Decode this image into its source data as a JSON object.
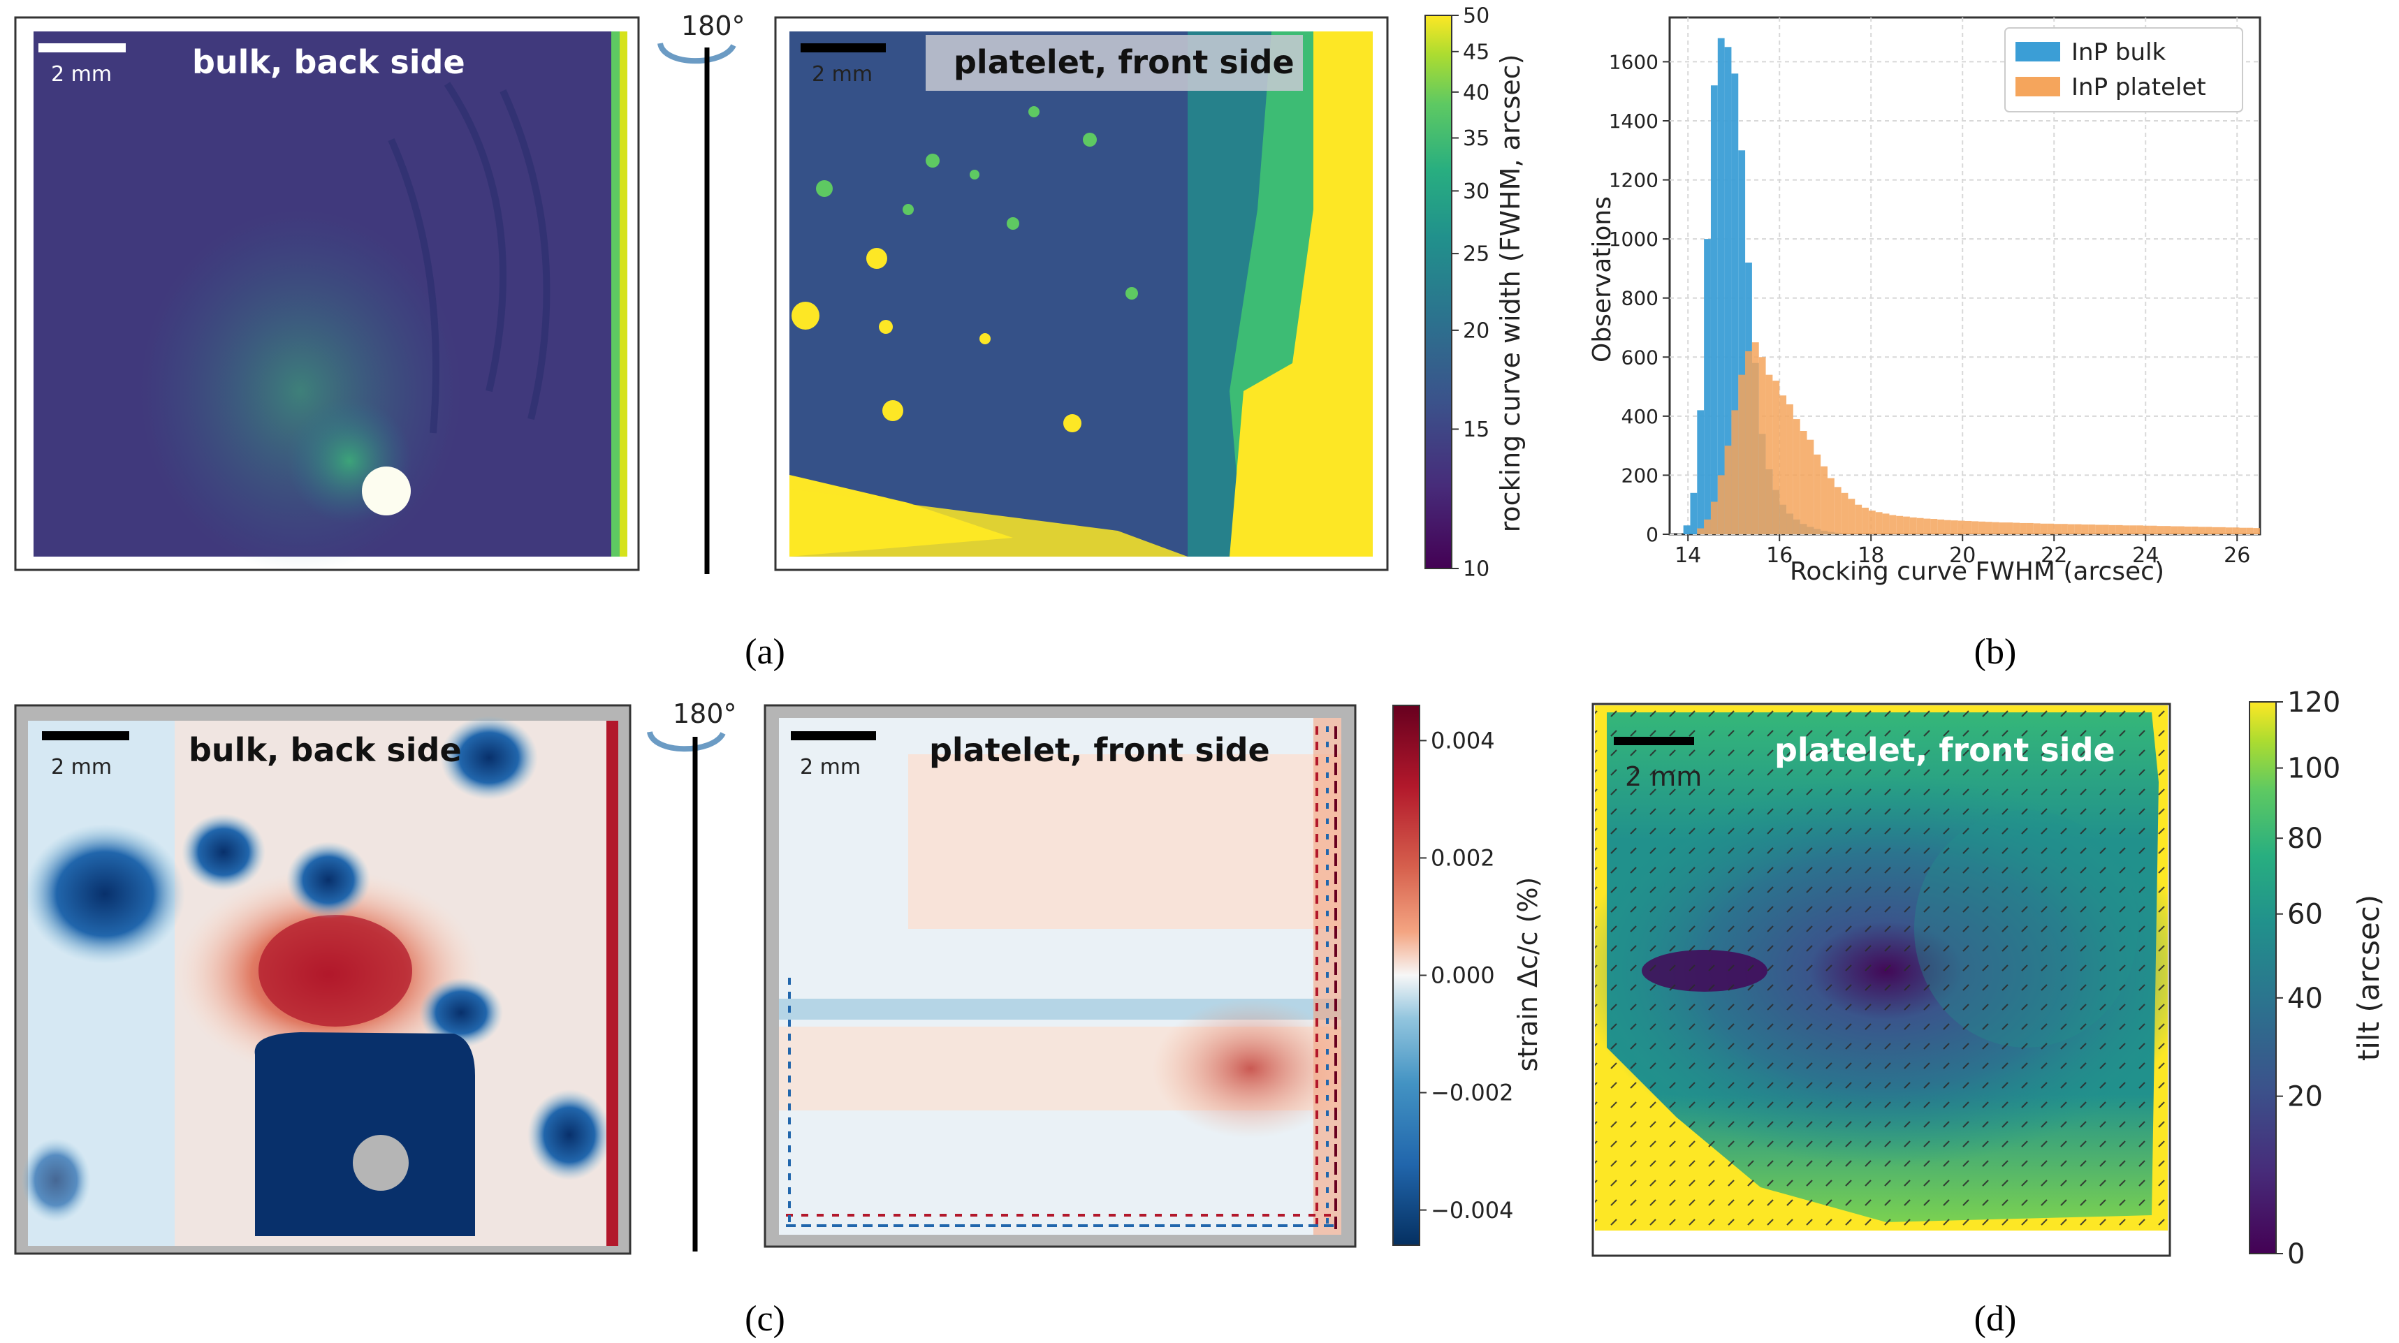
{
  "captions": {
    "a": "(a)",
    "b": "(b)",
    "c": "(c)",
    "d": "(d)"
  },
  "rotation_label": "180°",
  "scale_bar_text": "2 mm",
  "panel_a": {
    "left_title": "bulk, back side",
    "right_title": "platelet, front side",
    "colorbar": {
      "label": "rocking curve width (FWHM, arcsec)",
      "ticks": [
        "10",
        "15",
        "20",
        "25",
        "30",
        "35",
        "40",
        "45",
        "50"
      ],
      "tick_values": [
        10,
        15,
        20,
        25,
        30,
        35,
        40,
        45,
        50
      ]
    }
  },
  "panel_c": {
    "left_title": "bulk, back side",
    "right_title": "platelet, front side",
    "colorbar": {
      "label": "strain Δc/c (%)",
      "ticks": [
        "0.004",
        "0.002",
        "0.000",
        "−0.002",
        "−0.004"
      ],
      "tick_values": [
        0.004,
        0.002,
        0.0,
        -0.002,
        -0.004
      ]
    }
  },
  "panel_d": {
    "title": "platelet, front side",
    "colorbar": {
      "label": "tilt (arcsec)",
      "ticks": [
        "120",
        "100",
        "80",
        "60",
        "40",
        "20",
        "0"
      ],
      "tick_values": [
        120,
        100,
        80,
        60,
        40,
        20,
        0
      ]
    }
  },
  "colors": {
    "viridis_low": "#440154",
    "viridis_mid": "#21918c",
    "viridis_high": "#fde725",
    "rdbu_neg": "#053061",
    "rdbu_zero": "#f7f7f7",
    "rdbu_pos": "#67001f",
    "hist_bulk": "#3b9ed6",
    "hist_platelet": "#f5a55c"
  },
  "chart_data": [
    {
      "type": "bar",
      "panel": "b",
      "title": "",
      "xlabel": "Rocking curve FWHM (arcsec)",
      "ylabel": "Observations",
      "xlim": [
        13.6,
        26.5
      ],
      "ylim": [
        0,
        1750
      ],
      "xticks": [
        14,
        16,
        18,
        20,
        22,
        24,
        26
      ],
      "yticks": [
        0,
        200,
        400,
        600,
        800,
        1000,
        1200,
        1400,
        1600
      ],
      "grid": true,
      "legend": "top-right",
      "bin_width": 0.15,
      "series": [
        {
          "name": "InP bulk",
          "color": "#3b9ed6",
          "bins": [
            [
              13.9,
              30
            ],
            [
              14.05,
              140
            ],
            [
              14.2,
              420
            ],
            [
              14.35,
              1000
            ],
            [
              14.5,
              1520
            ],
            [
              14.65,
              1680
            ],
            [
              14.8,
              1650
            ],
            [
              14.95,
              1560
            ],
            [
              15.1,
              1300
            ],
            [
              15.25,
              920
            ],
            [
              15.4,
              580
            ],
            [
              15.55,
              340
            ],
            [
              15.7,
              220
            ],
            [
              15.85,
              150
            ],
            [
              16.0,
              100
            ],
            [
              16.15,
              70
            ],
            [
              16.3,
              50
            ],
            [
              16.45,
              35
            ],
            [
              16.6,
              25
            ],
            [
              16.75,
              18
            ],
            [
              16.9,
              12
            ],
            [
              17.05,
              8
            ],
            [
              17.2,
              5
            ]
          ]
        },
        {
          "name": "InP platelet",
          "color": "#f5a55c",
          "bins": [
            [
              14.2,
              20
            ],
            [
              14.35,
              50
            ],
            [
              14.5,
              110
            ],
            [
              14.65,
              200
            ],
            [
              14.8,
              300
            ],
            [
              14.95,
              420
            ],
            [
              15.1,
              540
            ],
            [
              15.25,
              620
            ],
            [
              15.4,
              650
            ],
            [
              15.55,
              600
            ],
            [
              15.7,
              540
            ],
            [
              15.85,
              520
            ],
            [
              16.0,
              470
            ],
            [
              16.15,
              440
            ],
            [
              16.3,
              390
            ],
            [
              16.45,
              350
            ],
            [
              16.6,
              320
            ],
            [
              16.75,
              270
            ],
            [
              16.9,
              230
            ],
            [
              17.05,
              190
            ],
            [
              17.2,
              160
            ],
            [
              17.35,
              140
            ],
            [
              17.5,
              120
            ],
            [
              17.65,
              100
            ],
            [
              17.8,
              90
            ],
            [
              17.95,
              80
            ],
            [
              18.1,
              75
            ],
            [
              18.25,
              70
            ],
            [
              18.4,
              65
            ],
            [
              18.55,
              62
            ],
            [
              18.7,
              60
            ],
            [
              18.85,
              57
            ],
            [
              19.0,
              55
            ],
            [
              19.15,
              53
            ],
            [
              19.3,
              52
            ],
            [
              19.45,
              50
            ],
            [
              19.6,
              48
            ],
            [
              19.75,
              47
            ],
            [
              19.9,
              46
            ],
            [
              20.05,
              45
            ],
            [
              20.2,
              44
            ],
            [
              20.35,
              43
            ],
            [
              20.5,
              42
            ],
            [
              20.65,
              41
            ],
            [
              20.8,
              40
            ],
            [
              20.95,
              40
            ],
            [
              21.1,
              39
            ],
            [
              21.25,
              38
            ],
            [
              21.4,
              38
            ],
            [
              21.55,
              37
            ],
            [
              21.7,
              36
            ],
            [
              21.85,
              36
            ],
            [
              22.0,
              35
            ],
            [
              22.15,
              35
            ],
            [
              22.3,
              34
            ],
            [
              22.45,
              34
            ],
            [
              22.6,
              33
            ],
            [
              22.75,
              33
            ],
            [
              22.9,
              32
            ],
            [
              23.05,
              32
            ],
            [
              23.2,
              31
            ],
            [
              23.35,
              31
            ],
            [
              23.5,
              30
            ],
            [
              23.65,
              30
            ],
            [
              23.8,
              30
            ],
            [
              23.95,
              29
            ],
            [
              24.1,
              29
            ],
            [
              24.25,
              28
            ],
            [
              24.4,
              28
            ],
            [
              24.55,
              27
            ],
            [
              24.7,
              27
            ],
            [
              24.85,
              26
            ],
            [
              25.0,
              26
            ],
            [
              25.15,
              25
            ],
            [
              25.3,
              25
            ],
            [
              25.45,
              24
            ],
            [
              25.6,
              24
            ],
            [
              25.75,
              23
            ],
            [
              25.9,
              23
            ],
            [
              26.05,
              22
            ],
            [
              26.2,
              22
            ],
            [
              26.35,
              21
            ]
          ]
        }
      ]
    }
  ]
}
